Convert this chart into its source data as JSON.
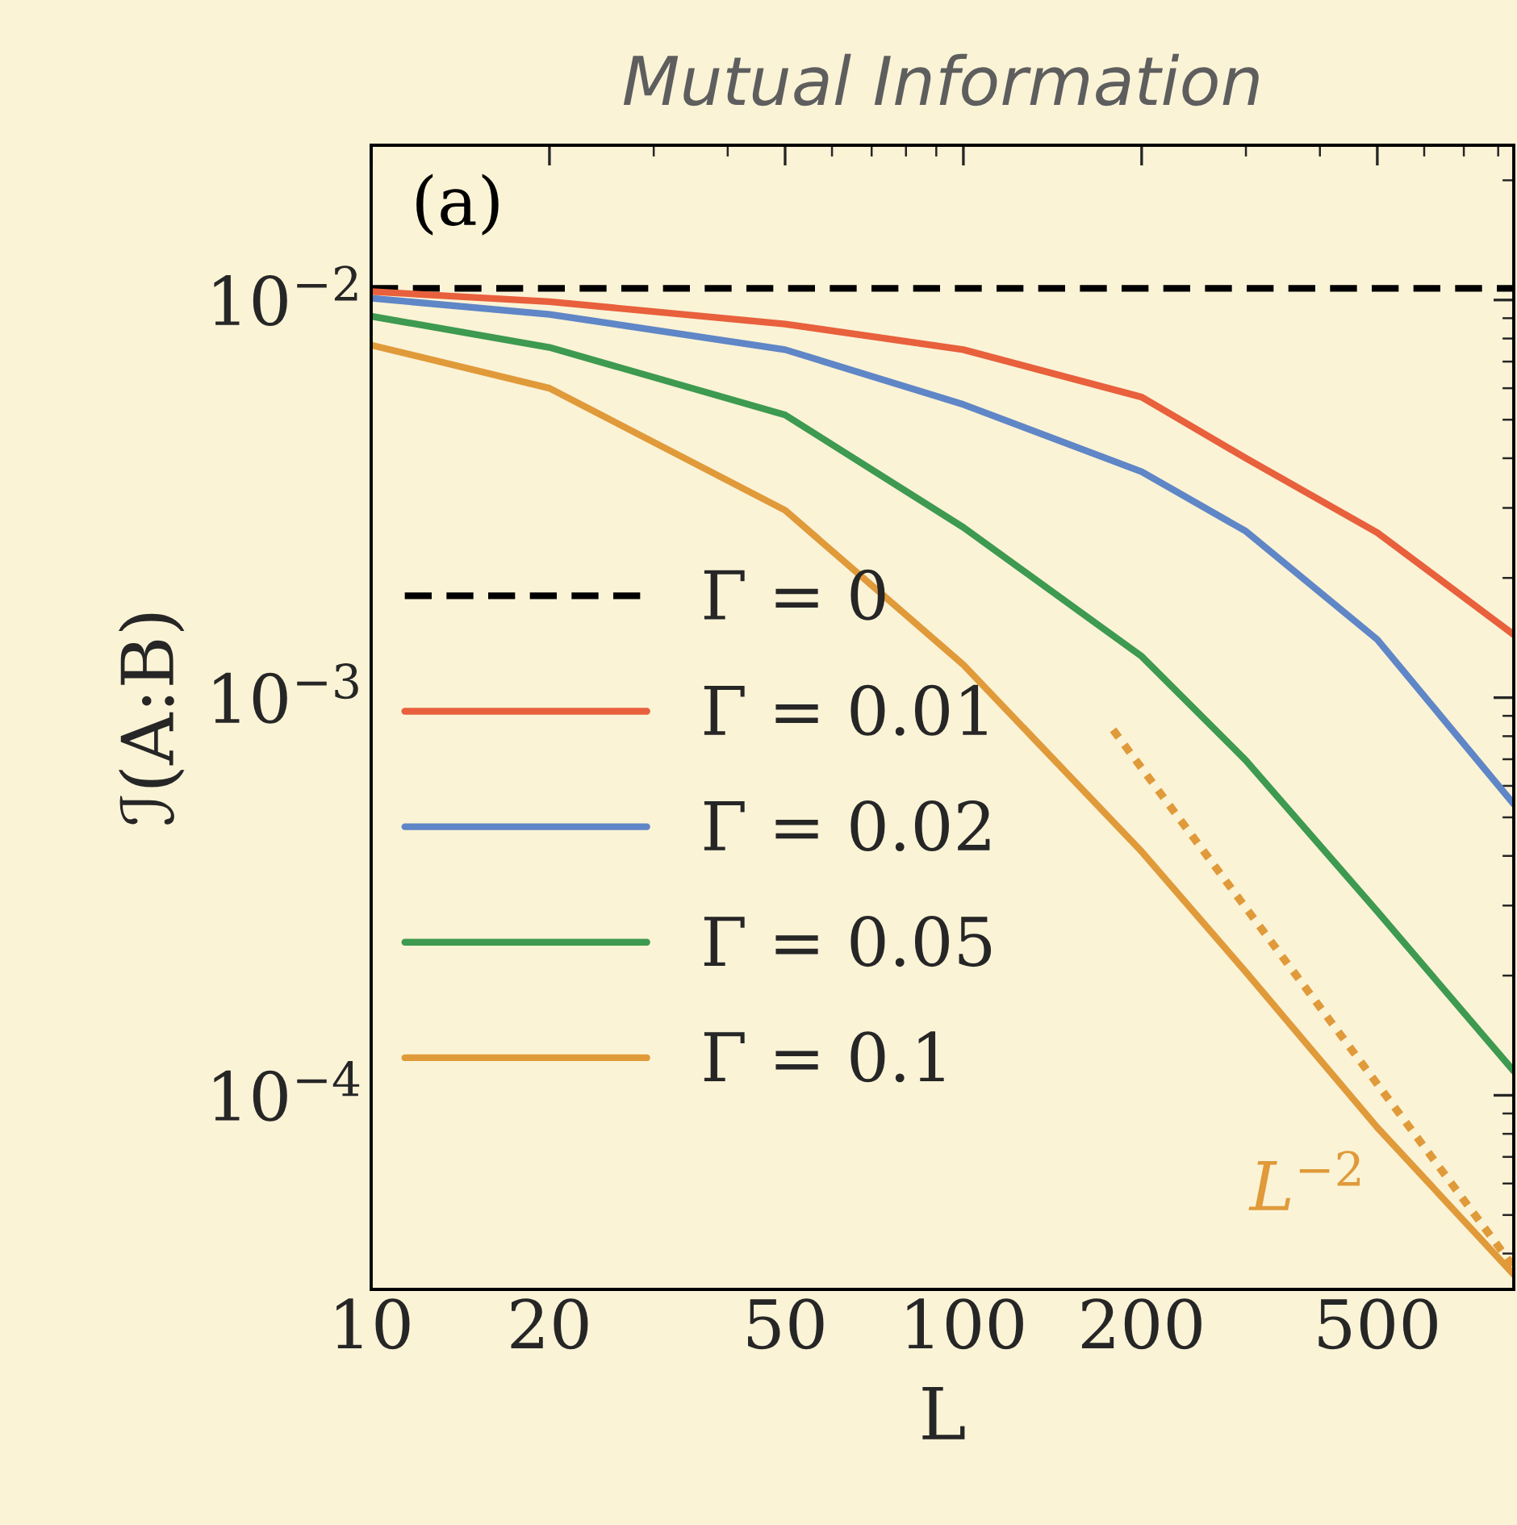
{
  "chart_data": {
    "type": "line",
    "title": "Mutual Information",
    "xlabel": "L",
    "ylabel": "ℐ(A:B)",
    "log": "xy",
    "xlim": [
      10,
      850
    ],
    "xticks": [
      10,
      20,
      50,
      100,
      200,
      500
    ],
    "ylim": [
      3.25e-05,
      0.0245
    ],
    "yticks": [
      {
        "value": 0.01,
        "label": "10$^{−2}$"
      },
      {
        "value": 0.001,
        "label": "10$^{−3}$"
      },
      {
        "value": 0.0001,
        "label": "10$^{−4}$"
      }
    ],
    "grid": false,
    "legend": "left",
    "marker": "none",
    "series": [
      {
        "name": "Γ = 0",
        "color": "#000000",
        "line_style": "dashed",
        "x": [
          10,
          850
        ],
        "values": [
          0.0107,
          0.0107
        ]
      },
      {
        "name": "Γ = 0.01",
        "color": "#e8603c",
        "line_style": "solid",
        "x": [
          10,
          20,
          50,
          100,
          200,
          300,
          500,
          850
        ],
        "values": [
          0.0105,
          0.0099,
          0.0087,
          0.0075,
          0.0057,
          0.004,
          0.0026,
          0.00144
        ]
      },
      {
        "name": "Γ = 0.02",
        "color": "#5f86c6",
        "line_style": "solid",
        "x": [
          10,
          20,
          50,
          100,
          200,
          300,
          500,
          850
        ],
        "values": [
          0.0101,
          0.0092,
          0.0075,
          0.00546,
          0.0037,
          0.00262,
          0.0014,
          0.00054
        ]
      },
      {
        "name": "Γ = 0.05",
        "color": "#3d9a50",
        "line_style": "solid",
        "x": [
          10,
          20,
          50,
          100,
          200,
          300,
          500,
          850
        ],
        "values": [
          0.0091,
          0.0076,
          0.00514,
          0.00268,
          0.00127,
          0.000695,
          0.00029,
          0.000115
        ]
      },
      {
        "name": "Γ = 0.1",
        "color": "#e09a3a",
        "line_style": "solid",
        "x": [
          10,
          20,
          50,
          100,
          200,
          300,
          500,
          850
        ],
        "values": [
          0.0077,
          0.006,
          0.00296,
          0.00121,
          0.00041,
          0.000204,
          8.3e-05,
          3.54e-05
        ]
      },
      {
        "color": "#e09a3a",
        "line_style": "dotted",
        "x": [
          179,
          850
        ],
        "values": [
          0.00083,
          3.7e-05
        ]
      }
    ],
    "annotations": [
      "(a)",
      "L$^{−2}$"
    ]
  }
}
